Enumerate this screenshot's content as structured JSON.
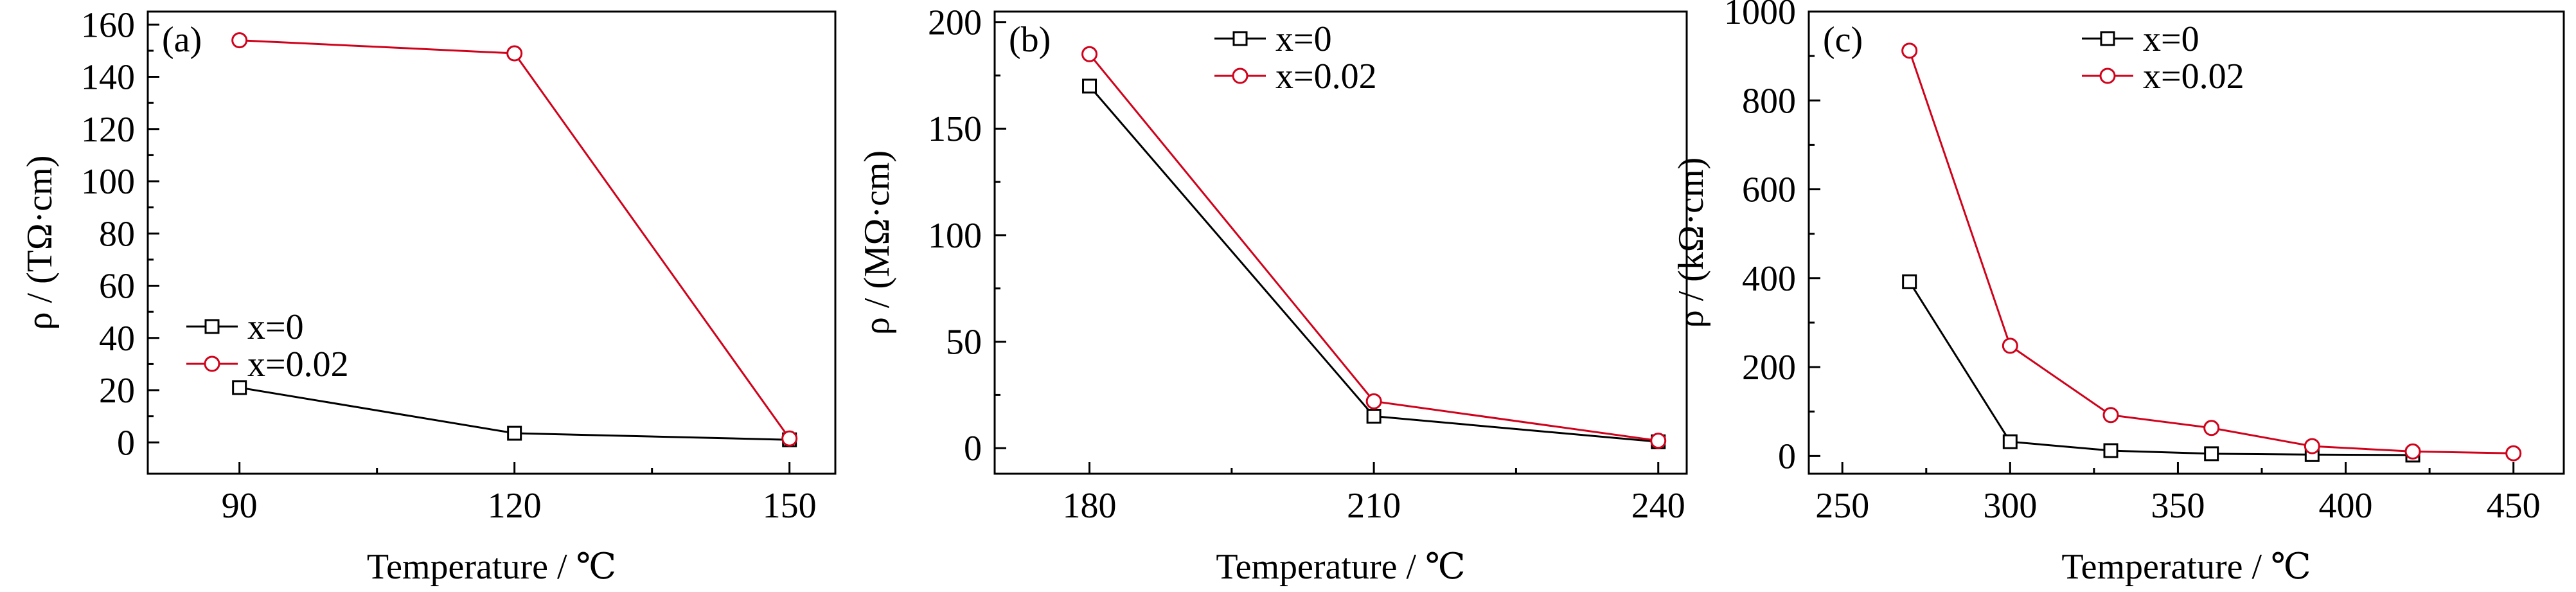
{
  "chart_data": [
    {
      "type": "line",
      "panel_label": "(a)",
      "xlabel": "Temperature / ℃",
      "ylabel": "ρ / (TΩ·cm)",
      "xlim": [
        80,
        155
      ],
      "ylim": [
        -12,
        165
      ],
      "xticks": [
        90,
        120,
        150
      ],
      "yticks": [
        0,
        20,
        40,
        60,
        80,
        100,
        120,
        140,
        160
      ],
      "legend_position": "lower-left",
      "series": [
        {
          "name": "x=0",
          "color": "#000000",
          "marker": "square",
          "x": [
            90,
            120,
            150
          ],
          "y": [
            21,
            3.5,
            1
          ]
        },
        {
          "name": "x=0.02",
          "color": "#d0021b",
          "marker": "circle",
          "x": [
            90,
            120,
            150
          ],
          "y": [
            154,
            149,
            1.5
          ]
        }
      ]
    },
    {
      "type": "line",
      "panel_label": "(b)",
      "xlabel": "Temperature / ℃",
      "ylabel": "ρ / (MΩ·cm)",
      "xlim": [
        170,
        243
      ],
      "ylim": [
        -12,
        205
      ],
      "xticks": [
        180,
        210,
        240
      ],
      "yticks": [
        0,
        50,
        100,
        150,
        200
      ],
      "legend_position": "top-center",
      "series": [
        {
          "name": "x=0",
          "color": "#000000",
          "marker": "square",
          "x": [
            180,
            210,
            240
          ],
          "y": [
            170,
            15,
            3
          ]
        },
        {
          "name": "x=0.02",
          "color": "#d0021b",
          "marker": "circle",
          "x": [
            180,
            210,
            240
          ],
          "y": [
            185,
            22,
            3.5
          ]
        }
      ]
    },
    {
      "type": "line",
      "panel_label": "(c)",
      "xlabel": "Temperature / ℃",
      "ylabel": "ρ / (kΩ·cm)",
      "xlim": [
        240,
        465
      ],
      "ylim": [
        -40,
        1000
      ],
      "xticks": [
        250,
        300,
        350,
        400,
        450
      ],
      "yticks": [
        0,
        200,
        400,
        600,
        800,
        1000
      ],
      "legend_position": "top-center",
      "series": [
        {
          "name": "x=0",
          "color": "#000000",
          "marker": "square",
          "x": [
            270,
            300,
            330,
            360,
            390,
            420
          ],
          "y": [
            392,
            32,
            12,
            5,
            3,
            2
          ]
        },
        {
          "name": "x=0.02",
          "color": "#d0021b",
          "marker": "circle",
          "x": [
            270,
            300,
            330,
            360,
            390,
            420,
            450
          ],
          "y": [
            912,
            248,
            92,
            63,
            22,
            10,
            6
          ]
        }
      ]
    }
  ]
}
